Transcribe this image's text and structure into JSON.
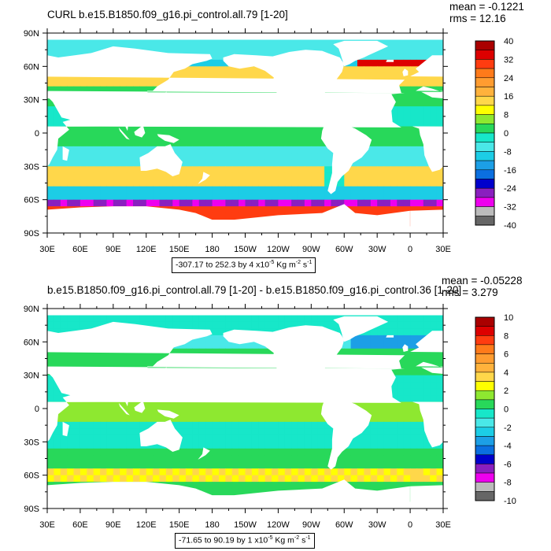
{
  "panels": [
    {
      "title": "CURL b.e15.B1850.f09_g16.pi_control.all.79 [1-20]",
      "mean_label": "mean = -0.1221",
      "rms_label": "rms = 12.16",
      "info_box": {
        "range": "-307.17 to 252.3",
        "interval": "by 4 x10",
        "interval_exp": "-5",
        "units": " Kg m",
        "units_exp_m": "-2",
        "units_s": " s",
        "units_exp_s": "-1"
      },
      "colorbar_labels": [
        "40",
        "32",
        "24",
        "16",
        "8",
        "0",
        "-8",
        "-16",
        "-24",
        "-32",
        "-40"
      ]
    },
    {
      "title": "b.e15.B1850.f09_g16.pi_control.all.79 [1-20] - b.e15.B1850.f09_g16.pi_control.36 [1-20]",
      "mean_label": "mean = -0.05228",
      "rms_label": "rms = 3.279",
      "info_box": {
        "range": "-71.65 to 90.19",
        "interval": "by 1 x10",
        "interval_exp": "-5",
        "units": " Kg m",
        "units_exp_m": "-2",
        "units_s": " s",
        "units_exp_s": "-1"
      },
      "colorbar_labels": [
        "10",
        "8",
        "6",
        "4",
        "2",
        "0",
        "-2",
        "-4",
        "-6",
        "-8",
        "-10"
      ]
    }
  ],
  "lat_labels": [
    "90N",
    "60N",
    "30N",
    "0",
    "30S",
    "60S",
    "90S"
  ],
  "lon_labels": [
    "30E",
    "60E",
    "90E",
    "120E",
    "150E",
    "180",
    "150W",
    "120W",
    "90W",
    "60W",
    "30W",
    "0",
    "30E"
  ],
  "palette": [
    "#666666",
    "#bbbbbb",
    "#ee00ee",
    "#8a1fbf",
    "#0000cc",
    "#0b6fe0",
    "#1c9fe6",
    "#1ccde6",
    "#4ae8e8",
    "#17e7c9",
    "#28d85a",
    "#8ee830",
    "#ffff00",
    "#ffd74a",
    "#ffb23c",
    "#ff9c30",
    "#ff7a1a",
    "#ff3c10",
    "#dd0000",
    "#aa0000"
  ]
}
